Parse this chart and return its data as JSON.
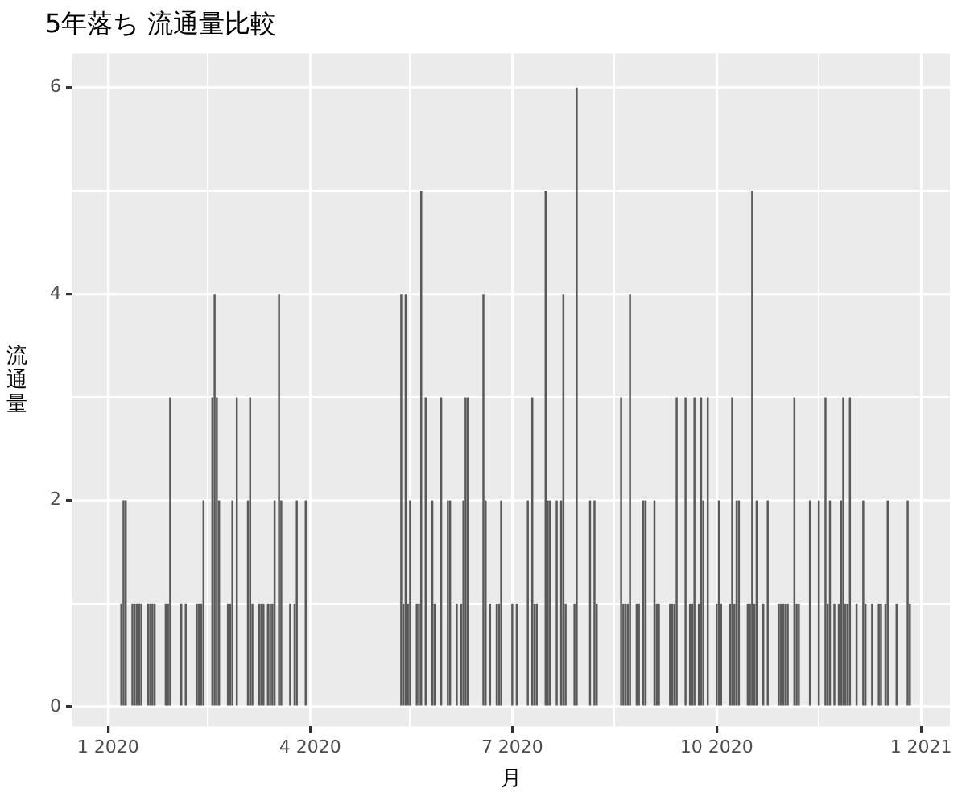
{
  "chart_data": {
    "type": "bar",
    "title": "5年落ち 流通量比較",
    "xlabel": "月",
    "ylabel": "流通量",
    "x": [
      "2020-01-07",
      "2020-01-08",
      "2020-01-09",
      "2020-01-12",
      "2020-01-13",
      "2020-01-14",
      "2020-01-15",
      "2020-01-16",
      "2020-01-19",
      "2020-01-20",
      "2020-01-21",
      "2020-01-22",
      "2020-01-27",
      "2020-01-28",
      "2020-01-29",
      "2020-02-03",
      "2020-02-05",
      "2020-02-10",
      "2020-02-11",
      "2020-02-12",
      "2020-02-13",
      "2020-02-17",
      "2020-02-18",
      "2020-02-19",
      "2020-02-20",
      "2020-02-24",
      "2020-02-25",
      "2020-02-26",
      "2020-02-28",
      "2020-03-04",
      "2020-03-05",
      "2020-03-06",
      "2020-03-09",
      "2020-03-10",
      "2020-03-11",
      "2020-03-13",
      "2020-03-14",
      "2020-03-15",
      "2020-03-16",
      "2020-03-18",
      "2020-03-19",
      "2020-03-23",
      "2020-03-25",
      "2020-03-26",
      "2020-03-30",
      "2020-05-12",
      "2020-05-13",
      "2020-05-14",
      "2020-05-15",
      "2020-05-16",
      "2020-05-19",
      "2020-05-20",
      "2020-05-21",
      "2020-05-23",
      "2020-05-26",
      "2020-05-27",
      "2020-05-30",
      "2020-06-02",
      "2020-06-03",
      "2020-06-06",
      "2020-06-08",
      "2020-06-09",
      "2020-06-10",
      "2020-06-11",
      "2020-06-18",
      "2020-06-19",
      "2020-06-21",
      "2020-06-24",
      "2020-06-25",
      "2020-06-26",
      "2020-07-01",
      "2020-07-03",
      "2020-07-08",
      "2020-07-10",
      "2020-07-11",
      "2020-07-12",
      "2020-07-16",
      "2020-07-17",
      "2020-07-18",
      "2020-07-21",
      "2020-07-23",
      "2020-07-24",
      "2020-07-25",
      "2020-07-29",
      "2020-07-30",
      "2020-08-05",
      "2020-08-07",
      "2020-08-08",
      "2020-08-19",
      "2020-08-20",
      "2020-08-21",
      "2020-08-22",
      "2020-08-23",
      "2020-08-26",
      "2020-08-27",
      "2020-08-29",
      "2020-08-30",
      "2020-09-03",
      "2020-09-04",
      "2020-09-05",
      "2020-09-10",
      "2020-09-11",
      "2020-09-12",
      "2020-09-13",
      "2020-09-17",
      "2020-09-19",
      "2020-09-20",
      "2020-09-21",
      "2020-09-23",
      "2020-09-24",
      "2020-09-25",
      "2020-09-27",
      "2020-10-01",
      "2020-10-02",
      "2020-10-03",
      "2020-10-07",
      "2020-10-08",
      "2020-10-09",
      "2020-10-10",
      "2020-10-11",
      "2020-10-15",
      "2020-10-16",
      "2020-10-17",
      "2020-10-18",
      "2020-10-19",
      "2020-10-22",
      "2020-10-24",
      "2020-10-29",
      "2020-10-30",
      "2020-10-31",
      "2020-11-01",
      "2020-11-02",
      "2020-11-05",
      "2020-11-06",
      "2020-11-07",
      "2020-11-12",
      "2020-11-16",
      "2020-11-19",
      "2020-11-20",
      "2020-11-21",
      "2020-11-23",
      "2020-11-25",
      "2020-11-26",
      "2020-11-27",
      "2020-11-28",
      "2020-11-29",
      "2020-11-30",
      "2020-12-03",
      "2020-12-06",
      "2020-12-07",
      "2020-12-10",
      "2020-12-13",
      "2020-12-14",
      "2020-12-16",
      "2020-12-17",
      "2020-12-21",
      "2020-12-26",
      "2020-12-27"
    ],
    "values": [
      1,
      2,
      2,
      1,
      1,
      1,
      1,
      1,
      1,
      1,
      1,
      1,
      1,
      1,
      3,
      1,
      1,
      1,
      1,
      1,
      2,
      3,
      4,
      3,
      2,
      1,
      1,
      2,
      3,
      2,
      3,
      1,
      1,
      1,
      1,
      1,
      1,
      1,
      2,
      4,
      2,
      1,
      1,
      2,
      2,
      4,
      1,
      4,
      1,
      2,
      1,
      1,
      5,
      3,
      2,
      1,
      3,
      2,
      2,
      1,
      1,
      2,
      3,
      3,
      4,
      2,
      1,
      1,
      1,
      2,
      1,
      1,
      2,
      3,
      1,
      1,
      5,
      2,
      2,
      2,
      2,
      4,
      1,
      1,
      6,
      2,
      2,
      1,
      3,
      1,
      1,
      1,
      4,
      1,
      1,
      2,
      2,
      2,
      1,
      1,
      1,
      1,
      1,
      3,
      3,
      1,
      1,
      3,
      1,
      3,
      2,
      3,
      1,
      2,
      1,
      1,
      3,
      1,
      2,
      2,
      1,
      1,
      5,
      1,
      2,
      1,
      2,
      1,
      1,
      1,
      1,
      1,
      3,
      1,
      1,
      2,
      2,
      3,
      1,
      2,
      1,
      1,
      2,
      3,
      1,
      1,
      3,
      1,
      2,
      1,
      1,
      1,
      1,
      1,
      2,
      1,
      2,
      1
    ],
    "color": "#595959",
    "xlim": [
      "2019-12-16",
      "2021-01-14"
    ],
    "xticks": [
      {
        "value": "2020-01-01",
        "label": "1 2020"
      },
      {
        "value": "2020-02-15",
        "label": null
      },
      {
        "value": "2020-04-01",
        "label": "4 2020"
      },
      {
        "value": "2020-05-16",
        "label": null
      },
      {
        "value": "2020-07-01",
        "label": "7 2020"
      },
      {
        "value": "2020-08-16",
        "label": null
      },
      {
        "value": "2020-10-01",
        "label": "10 2020"
      },
      {
        "value": "2020-11-16",
        "label": null
      },
      {
        "value": "2021-01-01",
        "label": "1 2021"
      }
    ],
    "ylim": [
      -0.19,
      6.33
    ],
    "yticks": [
      0,
      {
        "value": 1,
        "label": null
      },
      2,
      {
        "value": 3,
        "label": null
      },
      4,
      {
        "value": 5,
        "label": null
      },
      6
    ],
    "grid": true,
    "legend": false
  }
}
